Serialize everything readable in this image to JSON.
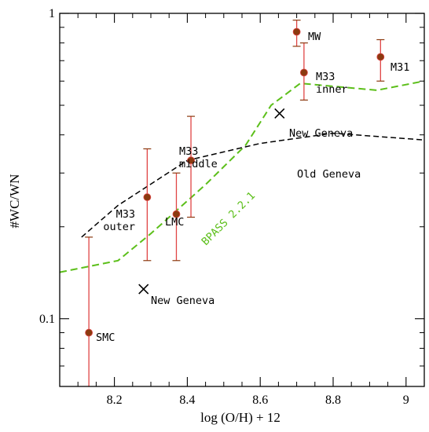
{
  "chart_data": {
    "type": "scatter",
    "xlabel": "log (O/H) + 12",
    "ylabel": "#WC/WN",
    "xlim": [
      8.05,
      9.05
    ],
    "ylim": [
      0.06,
      1.0
    ],
    "yscale": "log",
    "x_ticks": [
      8.2,
      8.4,
      8.6,
      8.8,
      9.0
    ],
    "x_tick_labels": [
      "8.2",
      "8.4",
      "8.6",
      "8.8",
      "9"
    ],
    "y_tick_labels": [
      {
        "value": 1.0,
        "label": "1"
      },
      {
        "value": 0.1,
        "label": "0.1"
      }
    ],
    "point_color": "#8b3a10",
    "errorbar_color": "#e04545",
    "points": [
      {
        "label": "SMC",
        "x": 8.13,
        "y": 0.09,
        "ylo": 0.055,
        "yhi": 0.185
      },
      {
        "label": "M33\nouter",
        "x": 8.29,
        "y": 0.25,
        "ylo": 0.155,
        "yhi": 0.36
      },
      {
        "label": "LMC",
        "x": 8.37,
        "y": 0.22,
        "ylo": 0.155,
        "yhi": 0.3
      },
      {
        "label": "M33\nmiddle",
        "x": 8.41,
        "y": 0.33,
        "ylo": 0.215,
        "yhi": 0.46
      },
      {
        "label": "MW",
        "x": 8.7,
        "y": 0.87,
        "ylo": 0.78,
        "yhi": 0.95
      },
      {
        "label": "M33\ninner",
        "x": 8.72,
        "y": 0.64,
        "ylo": 0.52,
        "yhi": 0.8
      },
      {
        "label": "M31",
        "x": 8.93,
        "y": 0.72,
        "ylo": 0.6,
        "yhi": 0.82
      }
    ],
    "series": [
      {
        "name": "BPASS 2.2.1",
        "color": "#5cbf1a",
        "style": "dashed",
        "x": [
          8.05,
          8.21,
          8.3,
          8.45,
          8.56,
          8.63,
          8.71,
          8.92,
          9.05
        ],
        "y": [
          0.142,
          0.155,
          0.19,
          0.275,
          0.37,
          0.5,
          0.59,
          0.56,
          0.6
        ]
      },
      {
        "name": "Old Geneva",
        "color": "#000000",
        "style": "dashed",
        "x": [
          8.11,
          8.21,
          8.4,
          8.6,
          8.8,
          9.05
        ],
        "y": [
          0.185,
          0.235,
          0.33,
          0.375,
          0.405,
          0.385
        ]
      }
    ],
    "markers": [
      {
        "label": "New Geneva",
        "x": 8.653,
        "y": 0.47
      },
      {
        "label": "New Geneva",
        "x": 8.28,
        "y": 0.125
      }
    ],
    "annotations": [
      {
        "text": "New Geneva"
      },
      {
        "text": "New Geneva"
      },
      {
        "text": "Old Geneva"
      },
      {
        "text": "BPASS 2.2.1"
      }
    ]
  }
}
